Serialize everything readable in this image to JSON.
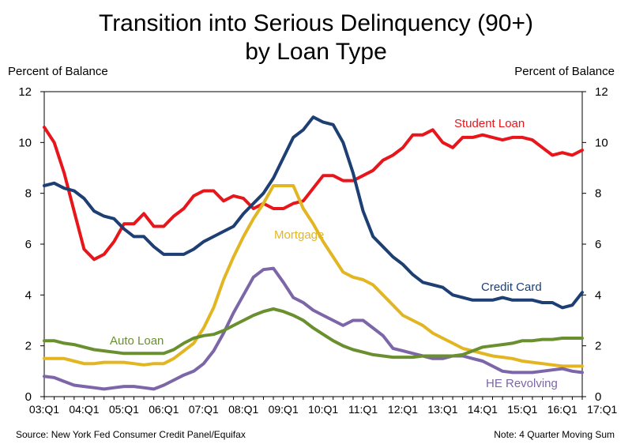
{
  "title_line1": "Transition into Serious Delinquency (90+)",
  "title_line2": "by Loan Type",
  "ylabel_left": "Percent of Balance",
  "ylabel_right": "Percent of Balance",
  "source": "Source: New York Fed Consumer Credit Panel/Equifax",
  "note": "Note: 4 Quarter Moving Sum",
  "chart_data": {
    "type": "line",
    "ylim": [
      0,
      12
    ],
    "yticks": [
      0,
      2,
      4,
      6,
      8,
      10,
      12
    ],
    "xtick_labels": [
      "03:Q1",
      "04:Q1",
      "05:Q1",
      "06:Q1",
      "07:Q1",
      "08:Q1",
      "09:Q1",
      "10:Q1",
      "11:Q1",
      "12:Q1",
      "13:Q1",
      "14:Q1",
      "15:Q1",
      "16:Q1",
      "17:Q1"
    ],
    "x_start": "2003Q1",
    "grid": false,
    "series": [
      {
        "name": "Student Loan",
        "color": "#e8151b",
        "values": [
          10.6,
          10.0,
          8.8,
          7.3,
          5.8,
          5.4,
          5.6,
          6.1,
          6.8,
          6.8,
          7.2,
          6.7,
          6.7,
          7.1,
          7.4,
          7.9,
          8.1,
          8.1,
          7.7,
          7.9,
          7.8,
          7.4,
          7.6,
          7.4,
          7.4,
          7.6,
          7.7,
          8.2,
          8.7,
          8.7,
          8.5,
          8.5,
          8.7,
          8.9,
          9.3,
          9.5,
          9.8,
          10.3,
          10.3,
          10.5,
          10.0,
          9.8,
          10.2,
          10.2,
          10.3,
          10.2,
          10.1,
          10.2,
          10.2,
          10.1,
          9.8,
          9.5,
          9.6,
          9.5,
          9.7
        ]
      },
      {
        "name": "Credit Card",
        "color": "#1d3f73",
        "values": [
          8.3,
          8.4,
          8.2,
          8.1,
          7.8,
          7.3,
          7.1,
          7.0,
          6.6,
          6.3,
          6.3,
          5.9,
          5.6,
          5.6,
          5.6,
          5.8,
          6.1,
          6.3,
          6.5,
          6.7,
          7.2,
          7.6,
          8.0,
          8.6,
          9.4,
          10.2,
          10.5,
          11.0,
          10.8,
          10.7,
          10.0,
          8.8,
          7.3,
          6.3,
          5.9,
          5.5,
          5.2,
          4.8,
          4.5,
          4.4,
          4.3,
          4.0,
          3.9,
          3.8,
          3.8,
          3.8,
          3.9,
          3.8,
          3.8,
          3.8,
          3.7,
          3.7,
          3.5,
          3.6,
          4.1
        ]
      },
      {
        "name": "Mortgage",
        "color": "#e2b623",
        "values": [
          1.5,
          1.5,
          1.5,
          1.4,
          1.3,
          1.3,
          1.35,
          1.35,
          1.35,
          1.3,
          1.25,
          1.3,
          1.3,
          1.5,
          1.8,
          2.1,
          2.7,
          3.5,
          4.6,
          5.5,
          6.3,
          7.0,
          7.6,
          8.3,
          8.3,
          8.3,
          7.4,
          6.8,
          6.1,
          5.5,
          4.9,
          4.7,
          4.6,
          4.4,
          4.0,
          3.6,
          3.2,
          3.0,
          2.8,
          2.5,
          2.3,
          2.1,
          1.9,
          1.8,
          1.7,
          1.6,
          1.55,
          1.5,
          1.4,
          1.35,
          1.3,
          1.25,
          1.2,
          1.2,
          1.2
        ]
      },
      {
        "name": "HE Revolving",
        "color": "#7d66a8",
        "values": [
          0.8,
          0.75,
          0.6,
          0.45,
          0.4,
          0.35,
          0.3,
          0.35,
          0.4,
          0.4,
          0.35,
          0.3,
          0.45,
          0.65,
          0.85,
          1.0,
          1.3,
          1.8,
          2.5,
          3.3,
          4.0,
          4.7,
          5.0,
          5.05,
          4.5,
          3.9,
          3.7,
          3.4,
          3.2,
          3.0,
          2.8,
          3.0,
          3.0,
          2.7,
          2.4,
          1.9,
          1.8,
          1.7,
          1.6,
          1.5,
          1.5,
          1.6,
          1.6,
          1.5,
          1.4,
          1.2,
          1.0,
          0.95,
          0.95,
          0.95,
          1.0,
          1.05,
          1.1,
          1.0,
          0.95
        ]
      },
      {
        "name": "Auto Loan",
        "color": "#6a8f2e",
        "values": [
          2.2,
          2.2,
          2.1,
          2.05,
          1.95,
          1.85,
          1.8,
          1.75,
          1.7,
          1.7,
          1.7,
          1.7,
          1.7,
          1.85,
          2.1,
          2.3,
          2.4,
          2.45,
          2.6,
          2.8,
          3.0,
          3.2,
          3.35,
          3.45,
          3.35,
          3.2,
          3.0,
          2.7,
          2.45,
          2.2,
          2.0,
          1.85,
          1.75,
          1.65,
          1.6,
          1.55,
          1.55,
          1.55,
          1.6,
          1.6,
          1.6,
          1.6,
          1.65,
          1.8,
          1.95,
          2.0,
          2.05,
          2.1,
          2.2,
          2.2,
          2.25,
          2.25,
          2.3,
          2.3,
          2.3
        ]
      }
    ],
    "annotations": [
      {
        "text": "Student Loan",
        "series": "Student Loan",
        "color": "#e8151b"
      },
      {
        "text": "Credit Card",
        "series": "Credit Card",
        "color": "#1d3f73"
      },
      {
        "text": "Mortgage",
        "series": "Mortgage",
        "color": "#e2b623"
      },
      {
        "text": "HE Revolving",
        "series": "HE Revolving",
        "color": "#7d66a8"
      },
      {
        "text": "Auto Loan",
        "series": "Auto Loan",
        "color": "#6a8f2e"
      }
    ]
  }
}
